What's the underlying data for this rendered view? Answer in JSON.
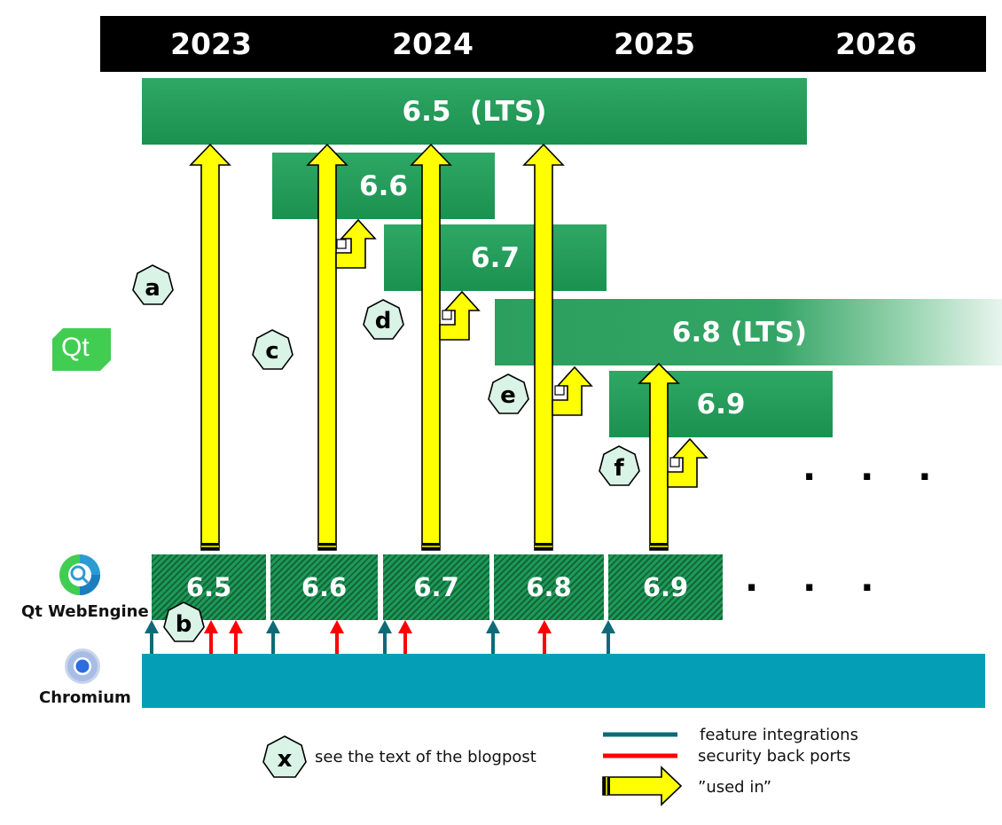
{
  "years": [
    "2023",
    "2024",
    "2025",
    "2026"
  ],
  "qt_releases": [
    "6.5  (LTS)",
    "6.6",
    "6.7",
    "6.8 (LTS)",
    "6.9"
  ],
  "qt_logo_text": "Qt",
  "webengine": {
    "label": "Qt WebEngine",
    "versions": [
      "6.5",
      "6.6",
      "6.7",
      "6.8",
      "6.9"
    ],
    "ellipsis": ". . ."
  },
  "qt_ellipsis": ". . .",
  "chromium_label": "Chromium",
  "markers": [
    "a",
    "b",
    "c",
    "d",
    "e",
    "f"
  ],
  "legend": {
    "marker_letter": "x",
    "marker_text": "see the text of the blogpost",
    "feature": "feature integrations",
    "security": "security back ports",
    "used_in": "”used in”"
  },
  "colors": {
    "qt_green": "#1f9a55",
    "chromium": "#049fb6",
    "feature_arrow": "#0e6a78",
    "security_arrow": "#ff0000",
    "used_in_arrow": "#ffff00",
    "marker_fill": "#d9f3e6"
  }
}
